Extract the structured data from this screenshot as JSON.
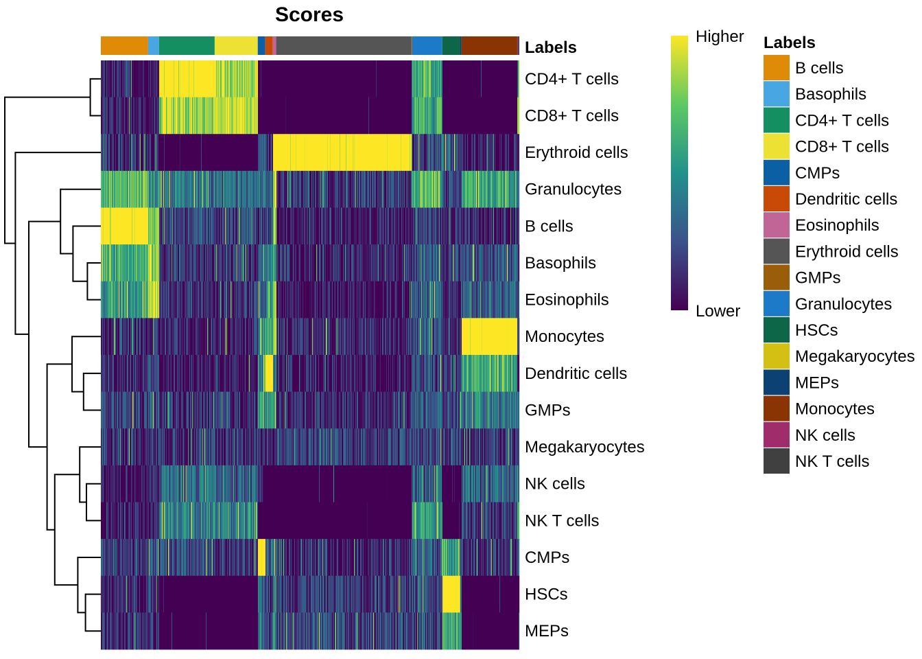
{
  "chart_data": {
    "type": "heatmap",
    "title": "Scores",
    "annotation_title": "Labels",
    "colorbar": {
      "high_label": "Higher",
      "low_label": "Lower",
      "colormap": "viridis"
    },
    "rows": [
      "CD4+ T cells",
      "CD8+ T cells",
      "Erythroid cells",
      "Granulocytes",
      "B cells",
      "Basophils",
      "Eosinophils",
      "Monocytes",
      "Dendritic cells",
      "GMPs",
      "Megakaryocytes",
      "NK cells",
      "NK T cells",
      "CMPs",
      "HSCs",
      "MEPs"
    ],
    "legend": {
      "title": "Labels",
      "items": [
        {
          "label": "B cells",
          "color": "#E08B07"
        },
        {
          "label": "Basophils",
          "color": "#48A6E2"
        },
        {
          "label": "CD4+ T cells",
          "color": "#148F62"
        },
        {
          "label": "CD8+ T cells",
          "color": "#EDE234"
        },
        {
          "label": "CMPs",
          "color": "#0B5FA5"
        },
        {
          "label": "Dendritic cells",
          "color": "#C94A07"
        },
        {
          "label": "Eosinophils",
          "color": "#C06596"
        },
        {
          "label": "Erythroid cells",
          "color": "#555555"
        },
        {
          "label": "GMPs",
          "color": "#9A5E0A"
        },
        {
          "label": "Granulocytes",
          "color": "#1C7AC8"
        },
        {
          "label": "HSCs",
          "color": "#0C6647"
        },
        {
          "label": "Megakaryocytes",
          "color": "#D4C012"
        },
        {
          "label": "MEPs",
          "color": "#0B4273"
        },
        {
          "label": "Monocytes",
          "color": "#8A3403"
        },
        {
          "label": "NK cells",
          "color": "#A02C6B"
        },
        {
          "label": "NK T cells",
          "color": "#404040"
        }
      ]
    },
    "column_groups": [
      {
        "label": "B cells",
        "fraction": 0.113
      },
      {
        "label": "Basophils",
        "fraction": 0.026
      },
      {
        "label": "CD4+ T cells",
        "fraction": 0.133
      },
      {
        "label": "CD8+ T cells",
        "fraction": 0.103
      },
      {
        "label": "CMPs",
        "fraction": 0.018
      },
      {
        "label": "Dendritic cells",
        "fraction": 0.018
      },
      {
        "label": "Eosinophils",
        "fraction": 0.008
      },
      {
        "label": "Erythroid cells",
        "fraction": 0.323
      },
      {
        "label": "GMPs",
        "fraction": 0.002
      },
      {
        "label": "Granulocytes",
        "fraction": 0.072
      },
      {
        "label": "HSCs",
        "fraction": 0.043
      },
      {
        "label": "MEPs",
        "fraction": 0.003
      },
      {
        "label": "Monocytes",
        "fraction": 0.133
      },
      {
        "label": "NK cells",
        "fraction": 0.002
      },
      {
        "label": "NK T cells",
        "fraction": 0.003
      }
    ],
    "mean_scores_by_row_and_group": [
      [
        0.05,
        0.05,
        0.95,
        0.85,
        0.0,
        0.0,
        0.0,
        0.02,
        0.5,
        0.6,
        0.0,
        0.0,
        0.0,
        0.3,
        0.7
      ],
      [
        0.05,
        0.1,
        0.8,
        0.9,
        0.0,
        0.0,
        0.0,
        0.02,
        0.5,
        0.6,
        0.0,
        0.0,
        0.0,
        0.9,
        0.9
      ],
      [
        0.15,
        0.1,
        0.0,
        0.0,
        0.3,
        0.1,
        1.0,
        1.0,
        0.5,
        0.2,
        0.3,
        0.1,
        0.05,
        0.1,
        0.1
      ],
      [
        0.7,
        0.5,
        0.4,
        0.35,
        0.35,
        0.3,
        0.9,
        0.15,
        0.5,
        0.7,
        0.15,
        0.2,
        0.6,
        0.4,
        0.4
      ],
      [
        0.95,
        0.85,
        0.2,
        0.2,
        0.15,
        0.2,
        0.8,
        0.05,
        0.3,
        0.2,
        0.1,
        0.1,
        0.05,
        0.1,
        0.1
      ],
      [
        0.65,
        0.85,
        0.15,
        0.15,
        0.35,
        0.4,
        0.5,
        0.1,
        0.3,
        0.3,
        0.15,
        0.2,
        0.25,
        0.2,
        0.2
      ],
      [
        0.55,
        0.9,
        0.12,
        0.12,
        0.3,
        0.5,
        0.9,
        0.05,
        0.3,
        0.3,
        0.1,
        0.2,
        0.3,
        0.2,
        0.2
      ],
      [
        0.1,
        0.1,
        0.1,
        0.1,
        0.5,
        0.6,
        0.9,
        0.12,
        0.4,
        0.3,
        0.1,
        0.3,
        0.98,
        0.3,
        0.3
      ],
      [
        0.12,
        0.15,
        0.05,
        0.05,
        0.5,
        0.95,
        0.4,
        0.05,
        0.3,
        0.2,
        0.1,
        0.3,
        0.6,
        0.2,
        0.2
      ],
      [
        0.18,
        0.2,
        0.12,
        0.12,
        0.5,
        0.5,
        0.4,
        0.12,
        0.3,
        0.3,
        0.2,
        0.3,
        0.4,
        0.3,
        0.3
      ],
      [
        0.15,
        0.15,
        0.15,
        0.15,
        0.15,
        0.1,
        0.1,
        0.2,
        0.2,
        0.2,
        0.2,
        0.2,
        0.15,
        0.2,
        0.2
      ],
      [
        0.05,
        0.1,
        0.35,
        0.3,
        0.05,
        0.0,
        0.0,
        0.02,
        0.3,
        0.3,
        0.0,
        0.0,
        0.3,
        0.8,
        0.3
      ],
      [
        0.05,
        0.05,
        0.45,
        0.45,
        0.0,
        0.0,
        0.0,
        0.02,
        0.5,
        0.5,
        0.0,
        0.0,
        0.15,
        0.8,
        0.8
      ],
      [
        0.2,
        0.25,
        0.2,
        0.15,
        0.95,
        0.3,
        0.3,
        0.1,
        0.4,
        0.3,
        0.6,
        0.3,
        0.12,
        0.2,
        0.2
      ],
      [
        0.1,
        0.15,
        0.02,
        0.02,
        0.4,
        0.2,
        0.5,
        0.2,
        0.3,
        0.2,
        0.98,
        0.5,
        0.02,
        0.05,
        0.05
      ],
      [
        0.1,
        0.12,
        0.02,
        0.02,
        0.4,
        0.2,
        0.5,
        0.2,
        0.3,
        0.2,
        0.6,
        0.5,
        0.02,
        0.05,
        0.05
      ]
    ],
    "row_dendrogram": [
      {
        "id": "n0",
        "left": 0,
        "right": 1,
        "height": 0.11
      },
      {
        "id": "n1",
        "left": 5,
        "right": 6,
        "height": 0.14
      },
      {
        "id": "n2",
        "left": 4,
        "right": "n1",
        "height": 0.29
      },
      {
        "id": "n3",
        "left": 3,
        "right": "n2",
        "height": 0.42
      },
      {
        "id": "n4",
        "left": 8,
        "right": 9,
        "height": 0.18
      },
      {
        "id": "n5",
        "left": 7,
        "right": "n4",
        "height": 0.3
      },
      {
        "id": "n6",
        "left": 11,
        "right": 12,
        "height": 0.15
      },
      {
        "id": "n7",
        "left": 10,
        "right": "n6",
        "height": 0.22
      },
      {
        "id": "n8",
        "left": 14,
        "right": 15,
        "height": 0.16
      },
      {
        "id": "n9",
        "left": 13,
        "right": "n8",
        "height": 0.24
      },
      {
        "id": "n10",
        "left": "n7",
        "right": "n9",
        "height": 0.48
      },
      {
        "id": "n11",
        "left": "n5",
        "right": "n10",
        "height": 0.56
      },
      {
        "id": "n12",
        "left": "n3",
        "right": "n11",
        "height": 0.75
      },
      {
        "id": "n13",
        "left": 2,
        "right": "n12",
        "height": 0.89
      },
      {
        "id": "n14",
        "left": "n0",
        "right": "n13",
        "height": 1.0
      }
    ]
  }
}
